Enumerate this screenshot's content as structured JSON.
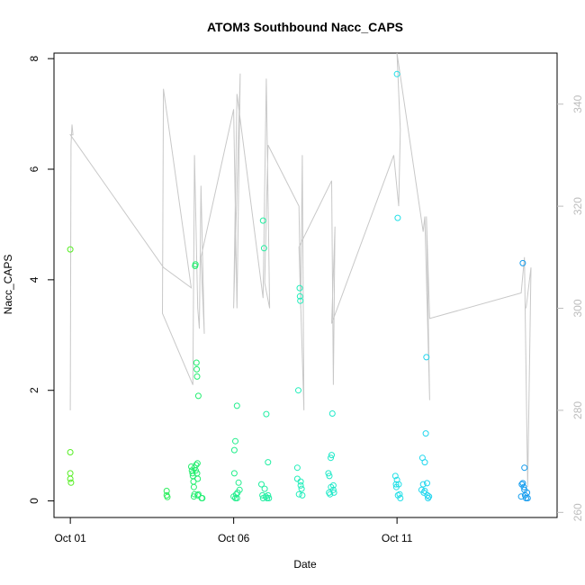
{
  "chart_data": {
    "type": "scatter",
    "title": "ATOM3 Southbound Nacc_CAPS",
    "xlabel": "Date",
    "ylabel": "Nacc_CAPS",
    "x_tick_labels": [
      "Oct 01",
      "Oct 06",
      "Oct 11"
    ],
    "x_tick_days": [
      1,
      6,
      11
    ],
    "xlim": [
      0.5,
      15.9
    ],
    "ylim": [
      -0.3,
      8.1
    ],
    "y_ticks": [
      0,
      2,
      4,
      6,
      8
    ],
    "y2_ticks": [
      260,
      280,
      300,
      320,
      340
    ],
    "y2lim": [
      259,
      350
    ],
    "grid": false,
    "legend": "none",
    "colors": {
      "line": "#c8c8c8",
      "right_axis": "#bdbdbd",
      "gradient": [
        "#55ee22",
        "#22ee66",
        "#22eebb",
        "#22ddee",
        "#1199ee"
      ]
    },
    "series": [
      {
        "type": "scatter",
        "points": [
          {
            "x": 1.0,
            "y": 4.55
          },
          {
            "x": 1.0,
            "y": 0.88
          },
          {
            "x": 1.0,
            "y": 0.5
          },
          {
            "x": 1.0,
            "y": 0.4
          },
          {
            "x": 1.02,
            "y": 0.33
          },
          {
            "x": 3.95,
            "y": 0.18
          },
          {
            "x": 3.95,
            "y": 0.1
          },
          {
            "x": 3.97,
            "y": 0.07
          },
          {
            "x": 4.7,
            "y": 0.62
          },
          {
            "x": 4.72,
            "y": 0.55
          },
          {
            "x": 4.74,
            "y": 0.5
          },
          {
            "x": 4.75,
            "y": 0.45
          },
          {
            "x": 4.77,
            "y": 0.35
          },
          {
            "x": 4.78,
            "y": 0.25
          },
          {
            "x": 4.8,
            "y": 0.6
          },
          {
            "x": 4.8,
            "y": 0.12
          },
          {
            "x": 4.82,
            "y": 4.25
          },
          {
            "x": 4.83,
            "y": 4.28
          },
          {
            "x": 4.84,
            "y": 0.55
          },
          {
            "x": 4.85,
            "y": 0.65
          },
          {
            "x": 4.86,
            "y": 2.5
          },
          {
            "x": 4.87,
            "y": 2.38
          },
          {
            "x": 4.88,
            "y": 2.25
          },
          {
            "x": 4.88,
            "y": 0.5
          },
          {
            "x": 4.89,
            "y": 0.68
          },
          {
            "x": 4.9,
            "y": 0.4
          },
          {
            "x": 4.9,
            "y": 0.1
          },
          {
            "x": 4.92,
            "y": 1.9
          },
          {
            "x": 4.92,
            "y": 0.12
          },
          {
            "x": 5.02,
            "y": 0.05
          },
          {
            "x": 5.04,
            "y": 0.05
          },
          {
            "x": 4.78,
            "y": 0.08
          },
          {
            "x": 6.02,
            "y": 0.92
          },
          {
            "x": 6.05,
            "y": 1.08
          },
          {
            "x": 6.1,
            "y": 1.72
          },
          {
            "x": 6.08,
            "y": 0.12
          },
          {
            "x": 6.1,
            "y": 0.05
          },
          {
            "x": 6.12,
            "y": 0.15
          },
          {
            "x": 6.15,
            "y": 0.33
          },
          {
            "x": 6.18,
            "y": 0.2
          },
          {
            "x": 6.05,
            "y": 0.05
          },
          {
            "x": 6.0,
            "y": 0.08
          },
          {
            "x": 6.02,
            "y": 0.5
          },
          {
            "x": 6.85,
            "y": 0.3
          },
          {
            "x": 6.88,
            "y": 0.1
          },
          {
            "x": 6.9,
            "y": 5.07
          },
          {
            "x": 6.93,
            "y": 4.57
          },
          {
            "x": 6.95,
            "y": 0.22
          },
          {
            "x": 6.98,
            "y": 0.08
          },
          {
            "x": 7.0,
            "y": 1.57
          },
          {
            "x": 7.02,
            "y": 0.05
          },
          {
            "x": 7.05,
            "y": 0.1
          },
          {
            "x": 7.05,
            "y": 0.7
          },
          {
            "x": 7.08,
            "y": 0.05
          },
          {
            "x": 6.9,
            "y": 0.05
          },
          {
            "x": 7.95,
            "y": 0.6
          },
          {
            "x": 7.98,
            "y": 2.0
          },
          {
            "x": 8.02,
            "y": 3.85
          },
          {
            "x": 8.03,
            "y": 3.7
          },
          {
            "x": 8.04,
            "y": 3.62
          },
          {
            "x": 8.05,
            "y": 0.35
          },
          {
            "x": 8.08,
            "y": 0.22
          },
          {
            "x": 8.1,
            "y": 0.1
          },
          {
            "x": 8.0,
            "y": 0.12
          },
          {
            "x": 8.05,
            "y": 0.28
          },
          {
            "x": 7.95,
            "y": 0.4
          },
          {
            "x": 8.9,
            "y": 0.5
          },
          {
            "x": 8.93,
            "y": 0.45
          },
          {
            "x": 8.95,
            "y": 0.12
          },
          {
            "x": 8.97,
            "y": 0.78
          },
          {
            "x": 9.0,
            "y": 0.83
          },
          {
            "x": 9.02,
            "y": 1.58
          },
          {
            "x": 9.05,
            "y": 0.2
          },
          {
            "x": 9.05,
            "y": 0.28
          },
          {
            "x": 8.92,
            "y": 0.15
          },
          {
            "x": 8.98,
            "y": 0.25
          },
          {
            "x": 9.07,
            "y": 0.15
          },
          {
            "x": 11.0,
            "y": 7.72
          },
          {
            "x": 11.02,
            "y": 5.12
          },
          {
            "x": 10.95,
            "y": 0.45
          },
          {
            "x": 11.0,
            "y": 0.38
          },
          {
            "x": 11.05,
            "y": 0.3
          },
          {
            "x": 10.98,
            "y": 0.25
          },
          {
            "x": 11.08,
            "y": 0.12
          },
          {
            "x": 11.1,
            "y": 0.05
          },
          {
            "x": 11.03,
            "y": 0.1
          },
          {
            "x": 10.97,
            "y": 0.3
          },
          {
            "x": 11.75,
            "y": 0.2
          },
          {
            "x": 11.78,
            "y": 0.78
          },
          {
            "x": 11.82,
            "y": 0.15
          },
          {
            "x": 11.85,
            "y": 0.7
          },
          {
            "x": 11.88,
            "y": 1.22
          },
          {
            "x": 11.9,
            "y": 2.6
          },
          {
            "x": 11.92,
            "y": 0.32
          },
          {
            "x": 11.93,
            "y": 0.1
          },
          {
            "x": 11.95,
            "y": 0.05
          },
          {
            "x": 11.8,
            "y": 0.3
          },
          {
            "x": 11.85,
            "y": 0.18
          },
          {
            "x": 11.98,
            "y": 0.08
          },
          {
            "x": 14.85,
            "y": 4.3
          },
          {
            "x": 14.9,
            "y": 0.6
          },
          {
            "x": 14.85,
            "y": 0.32
          },
          {
            "x": 14.88,
            "y": 0.25
          },
          {
            "x": 14.9,
            "y": 0.2
          },
          {
            "x": 14.92,
            "y": 0.1
          },
          {
            "x": 14.95,
            "y": 0.05
          },
          {
            "x": 14.98,
            "y": 0.15
          },
          {
            "x": 14.8,
            "y": 0.08
          },
          {
            "x": 14.82,
            "y": 0.3
          },
          {
            "x": 15.0,
            "y": 0.05
          }
        ]
      },
      {
        "type": "line",
        "axis": "right",
        "x": [
          1.0,
          1.02,
          1.05,
          1.08,
          1.0,
          3.85,
          4.7,
          3.85,
          3.82,
          4.75,
          4.8,
          4.9,
          4.95,
          5.0,
          5.1,
          5.0,
          6.0,
          6.1,
          6.2,
          6.0,
          6.1,
          6.9,
          7.0,
          7.1,
          6.95,
          7.05,
          8.0,
          8.05,
          8.1,
          8.15,
          8.0,
          9.0,
          9.05,
          9.1,
          9.0,
          10.9,
          11.05,
          11.1,
          11.0,
          11.8,
          11.85,
          12.0,
          11.9,
          12.0,
          14.8,
          14.9,
          15.0,
          15.1,
          14.95
        ],
        "y": [
          280,
          332,
          336,
          334,
          334,
          308,
          304,
          343,
          299,
          285,
          330,
          300,
          296,
          324,
          295,
          310,
          339,
          300,
          346,
          300,
          342,
          302,
          345,
          300,
          305,
          332,
          320,
          300,
          330,
          280,
          312,
          325,
          285,
          316,
          297,
          330,
          320,
          335,
          350,
          315,
          318,
          282,
          318,
          298,
          303,
          310,
          265,
          308,
          300
        ]
      }
    ]
  }
}
